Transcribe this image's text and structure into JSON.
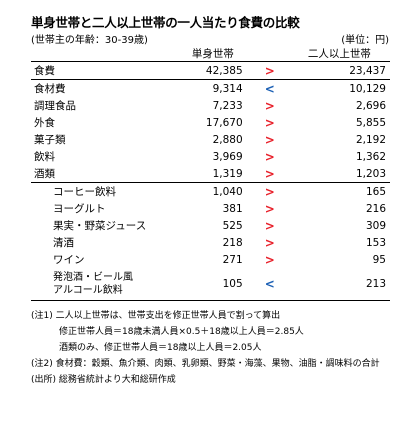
{
  "title": "単身世帯と二人以上世帯の一人当たり食費の比較",
  "subtitle": "(世帯主の年齢：30-39歳)",
  "unit": "(単位：円)",
  "columns": {
    "single": "単身世帯",
    "multi": "二人以上世帯"
  },
  "rows": [
    {
      "label": "食費",
      "single": "42,385",
      "symbol": ">",
      "symbol_color": "#e8202a",
      "multi": "23,437"
    },
    {
      "label": "食材費",
      "single": "9,314",
      "symbol": "<",
      "symbol_color": "#1a5fb4",
      "multi": "10,129"
    },
    {
      "label": "調理食品",
      "single": "7,233",
      "symbol": ">",
      "symbol_color": "#e8202a",
      "multi": "2,696"
    },
    {
      "label": "外食",
      "single": "17,670",
      "symbol": ">",
      "symbol_color": "#e8202a",
      "multi": "5,855"
    },
    {
      "label": "菓子類",
      "single": "2,880",
      "symbol": ">",
      "symbol_color": "#e8202a",
      "multi": "2,192"
    },
    {
      "label": "飲料",
      "single": "3,969",
      "symbol": ">",
      "symbol_color": "#e8202a",
      "multi": "1,362"
    },
    {
      "label": "酒類",
      "single": "1,319",
      "symbol": ">",
      "symbol_color": "#e8202a",
      "multi": "1,203"
    },
    {
      "label": "コーヒー飲料",
      "single": "1,040",
      "symbol": ">",
      "symbol_color": "#e8202a",
      "multi": "165"
    },
    {
      "label": "ヨーグルト",
      "single": "381",
      "symbol": ">",
      "symbol_color": "#e8202a",
      "multi": "216"
    },
    {
      "label": "果実・野菜ジュース",
      "single": "525",
      "symbol": ">",
      "symbol_color": "#e8202a",
      "multi": "309"
    },
    {
      "label": "清酒",
      "single": "218",
      "symbol": ">",
      "symbol_color": "#e8202a",
      "multi": "153"
    },
    {
      "label": "ワイン",
      "single": "271",
      "symbol": ">",
      "symbol_color": "#e8202a",
      "multi": "95"
    },
    {
      "label_line1": "発泡酒・ビール風",
      "label_line2": "アルコール飲料",
      "single": "105",
      "symbol": "<",
      "symbol_color": "#1a5fb4",
      "multi": "213"
    }
  ],
  "notes": {
    "note1": "(注1) 二人以上世帯は、世帯支出を修正世帯人員で割って算出",
    "note1_formula1": "修正世帯人員＝18歳未満人員×0.5＋18歳以上人員＝2.85人",
    "note1_formula2": "酒類のみ、修正世帯人員＝18歳以上人員＝2.05人",
    "note2": "(注2) 食材費：穀類、魚介類、肉類、乳卵類、野菜・海藻、果物、油脂・調味料の合計",
    "source": "(出所) 総務省統計より大和総研作成"
  }
}
